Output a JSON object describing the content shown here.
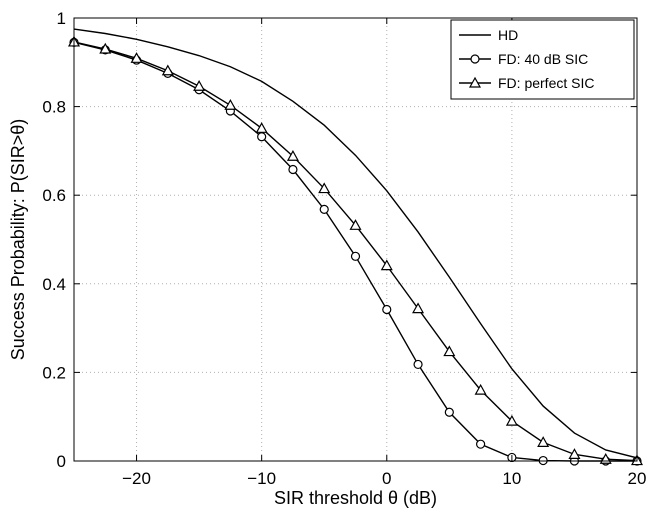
{
  "chart_data": {
    "type": "line",
    "xlabel": "SIR threshold θ (dB)",
    "ylabel": "Success Probability: P(SIR>θ)",
    "xlim": [
      -25,
      20
    ],
    "ylim": [
      0,
      1
    ],
    "xticks": [
      -20,
      -10,
      0,
      10,
      20
    ],
    "xtick_labels": [
      "−20",
      "−10",
      "0",
      "10",
      "20"
    ],
    "yticks": [
      0,
      0.2,
      0.4,
      0.6,
      0.8,
      1
    ],
    "ytick_labels": [
      "0",
      "0.2",
      "0.4",
      "0.6",
      "0.8",
      "1"
    ],
    "grid": true,
    "legend_position": "top-right",
    "series": [
      {
        "name": "HD",
        "marker": "none",
        "color": "#000000",
        "x": [
          -25,
          -22.5,
          -20,
          -17.5,
          -15,
          -12.5,
          -10,
          -7.5,
          -5,
          -2.5,
          0,
          2.5,
          5,
          7.5,
          10,
          12.5,
          15,
          17.5,
          20
        ],
        "y": [
          0.975,
          0.965,
          0.952,
          0.935,
          0.915,
          0.89,
          0.857,
          0.812,
          0.758,
          0.69,
          0.61,
          0.517,
          0.415,
          0.31,
          0.208,
          0.124,
          0.063,
          0.025,
          0.007
        ]
      },
      {
        "name": "FD: 40 dB SIC",
        "marker": "circle",
        "color": "#000000",
        "x": [
          -25,
          -22.5,
          -20,
          -17.5,
          -15,
          -12.5,
          -10,
          -7.5,
          -5,
          -2.5,
          0,
          2.5,
          5,
          7.5,
          10,
          12.5,
          15,
          17.5,
          20
        ],
        "y": [
          0.945,
          0.928,
          0.905,
          0.875,
          0.838,
          0.79,
          0.732,
          0.658,
          0.568,
          0.462,
          0.342,
          0.218,
          0.11,
          0.038,
          0.008,
          0.001,
          0.0,
          0.0,
          0.0
        ]
      },
      {
        "name": "FD: perfect SIC",
        "marker": "triangle",
        "color": "#000000",
        "x": [
          -25,
          -22.5,
          -20,
          -17.5,
          -15,
          -12.5,
          -10,
          -7.5,
          -5,
          -2.5,
          0,
          2.5,
          5,
          7.5,
          10,
          12.5,
          15,
          17.5,
          20
        ],
        "y": [
          0.946,
          0.93,
          0.909,
          0.881,
          0.846,
          0.803,
          0.751,
          0.688,
          0.615,
          0.532,
          0.441,
          0.344,
          0.247,
          0.16,
          0.09,
          0.042,
          0.015,
          0.004,
          0.001
        ]
      }
    ]
  }
}
